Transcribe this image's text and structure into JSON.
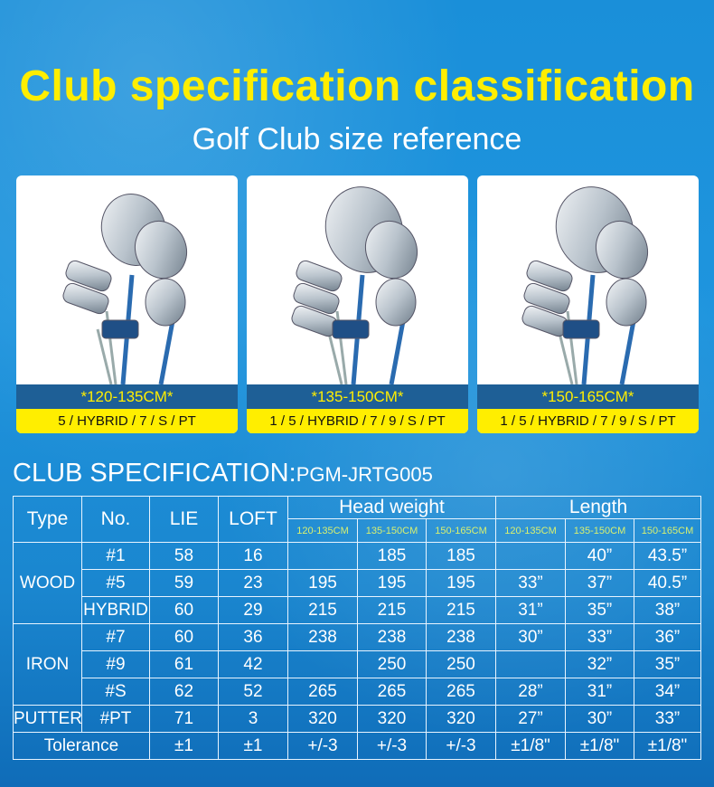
{
  "title": "Club specification classification",
  "subtitle": "Golf Club size reference",
  "cards": [
    {
      "height": "*120-135CM*",
      "set": "5 / HYBRID / 7 / S / PT"
    },
    {
      "height": "*135-150CM*",
      "set": "1 / 5 / HYBRID / 7 / 9 / S / PT"
    },
    {
      "height": "*150-165CM*",
      "set": "1 / 5 / HYBRID / 7 / 9 / S / PT"
    }
  ],
  "spec": {
    "label": "CLUB SPECIFICATION:",
    "model": "PGM-JRTG005"
  },
  "table": {
    "headers": {
      "type": "Type",
      "no": "No.",
      "lie": "LIE",
      "loft": "LOFT",
      "head_weight": "Head weight",
      "length": "Length"
    },
    "sizes": [
      "120-135CM",
      "135-150CM",
      "150-165CM"
    ],
    "groups": {
      "wood": "WOOD",
      "iron": "IRON",
      "putter": "PUTTER"
    },
    "rows": [
      [
        "#1",
        "58",
        "16",
        "",
        "185",
        "185",
        "",
        "40”",
        "43.5”"
      ],
      [
        "#5",
        "59",
        "23",
        "195",
        "195",
        "195",
        "33”",
        "37”",
        "40.5”"
      ],
      [
        "HYBRID",
        "60",
        "29",
        "215",
        "215",
        "215",
        "31”",
        "35”",
        "38”"
      ],
      [
        "#7",
        "60",
        "36",
        "238",
        "238",
        "238",
        "30”",
        "33”",
        "36”"
      ],
      [
        "#9",
        "61",
        "42",
        "",
        "250",
        "250",
        "",
        "32”",
        "35”"
      ],
      [
        "#S",
        "62",
        "52",
        "265",
        "265",
        "265",
        "28”",
        "31”",
        "34”"
      ],
      [
        "#PT",
        "71",
        "3",
        "320",
        "320",
        "320",
        "27”",
        "30”",
        "33”"
      ]
    ],
    "tolerance": [
      "Tolerance",
      "±1",
      "±1",
      "+/-3",
      "+/-3",
      "+/-3",
      "±1/8\"",
      "±1/8\"",
      "±1/8\""
    ]
  },
  "colors": {
    "title": "#ffee00",
    "band": "#1e5f96",
    "set_band": "#ffee00",
    "background": "#1a8fd9"
  }
}
